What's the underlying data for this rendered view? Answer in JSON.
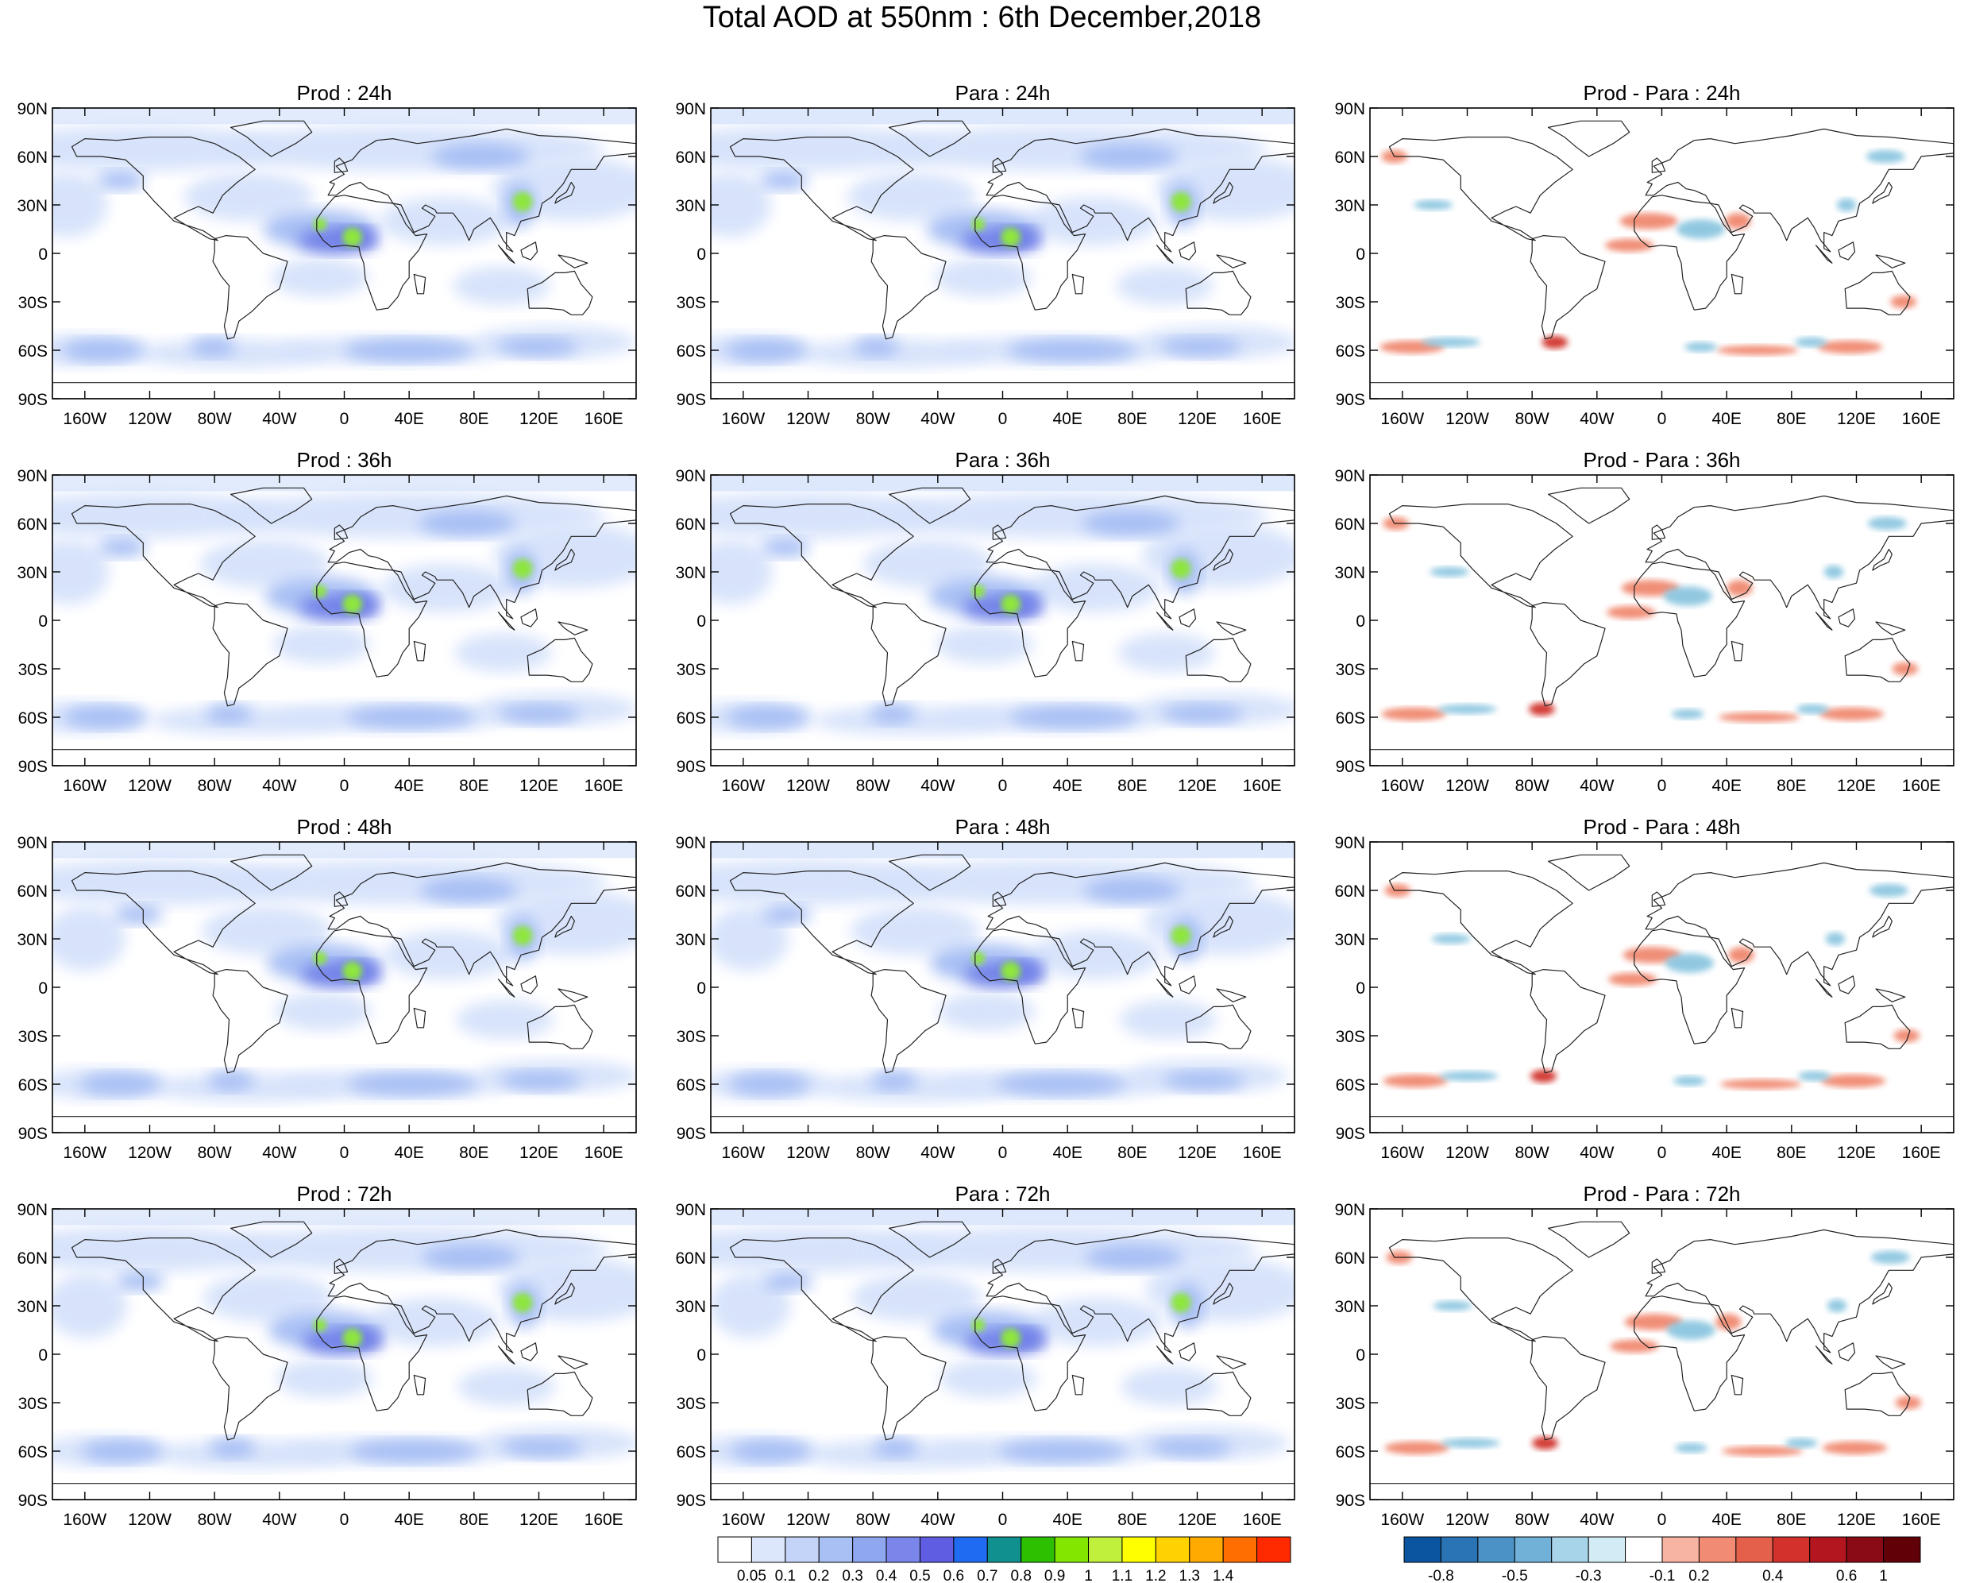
{
  "title": "Total AOD at 550nm : 6th December,2018",
  "columns": [
    "Prod",
    "Para",
    "Prod - Para"
  ],
  "rows": [
    "24h",
    "36h",
    "48h",
    "72h"
  ],
  "panel_titles": [
    [
      "Prod : 24h",
      "Para : 24h",
      "Prod - Para : 24h"
    ],
    [
      "Prod : 36h",
      "Para : 36h",
      "Prod - Para : 36h"
    ],
    [
      "Prod : 48h",
      "Para : 48h",
      "Prod - Para : 48h"
    ],
    [
      "Prod : 72h",
      "Para : 72h",
      "Prod - Para : 72h"
    ]
  ],
  "lat_labels": [
    "90N",
    "60N",
    "30N",
    "0",
    "30S",
    "60S",
    "90S"
  ],
  "lon_labels": [
    "160W",
    "120W",
    "80W",
    "40W",
    "0",
    "40E",
    "80E",
    "120E",
    "160E"
  ],
  "aod_colorbar": {
    "labels": [
      "0.05",
      "0.1",
      "0.2",
      "0.3",
      "0.4",
      "0.5",
      "0.6",
      "0.7",
      "0.8",
      "0.9",
      "1",
      "1.1",
      "1.2",
      "1.3",
      "1.4"
    ],
    "colors": [
      "#ffffff",
      "#dde7fb",
      "#c4d4f8",
      "#a9c0f4",
      "#8fa7ef",
      "#7a86ea",
      "#5f5ee3",
      "#1f6cf2",
      "#10918f",
      "#2cc000",
      "#82e600",
      "#c0f03c",
      "#ffff00",
      "#ffd200",
      "#ffaa00",
      "#ff6e00",
      "#ff2a00"
    ]
  },
  "diff_colorbar": {
    "labels": [
      "-0.8",
      "-0.5",
      "-0.3",
      "-0.1",
      "0.2",
      "0.4",
      "0.6",
      "1"
    ],
    "colors": [
      "#0b55a0",
      "#2a74b5",
      "#4b93c6",
      "#71b1d7",
      "#a7d4e8",
      "#d2ebf5",
      "#ffffff",
      "#f8b4a2",
      "#f18b73",
      "#e5604a",
      "#d3322c",
      "#b3161f",
      "#8a0b15",
      "#620008"
    ]
  },
  "map_fills": {
    "light": "#d6e2fb",
    "medium": "#a5bdf4",
    "dark": "#6f7fe8",
    "hotspot": "#8ee63c",
    "diff_red": "#f08870",
    "diff_blue": "#8cc6e0",
    "diff_red_dark": "#d0302a"
  }
}
